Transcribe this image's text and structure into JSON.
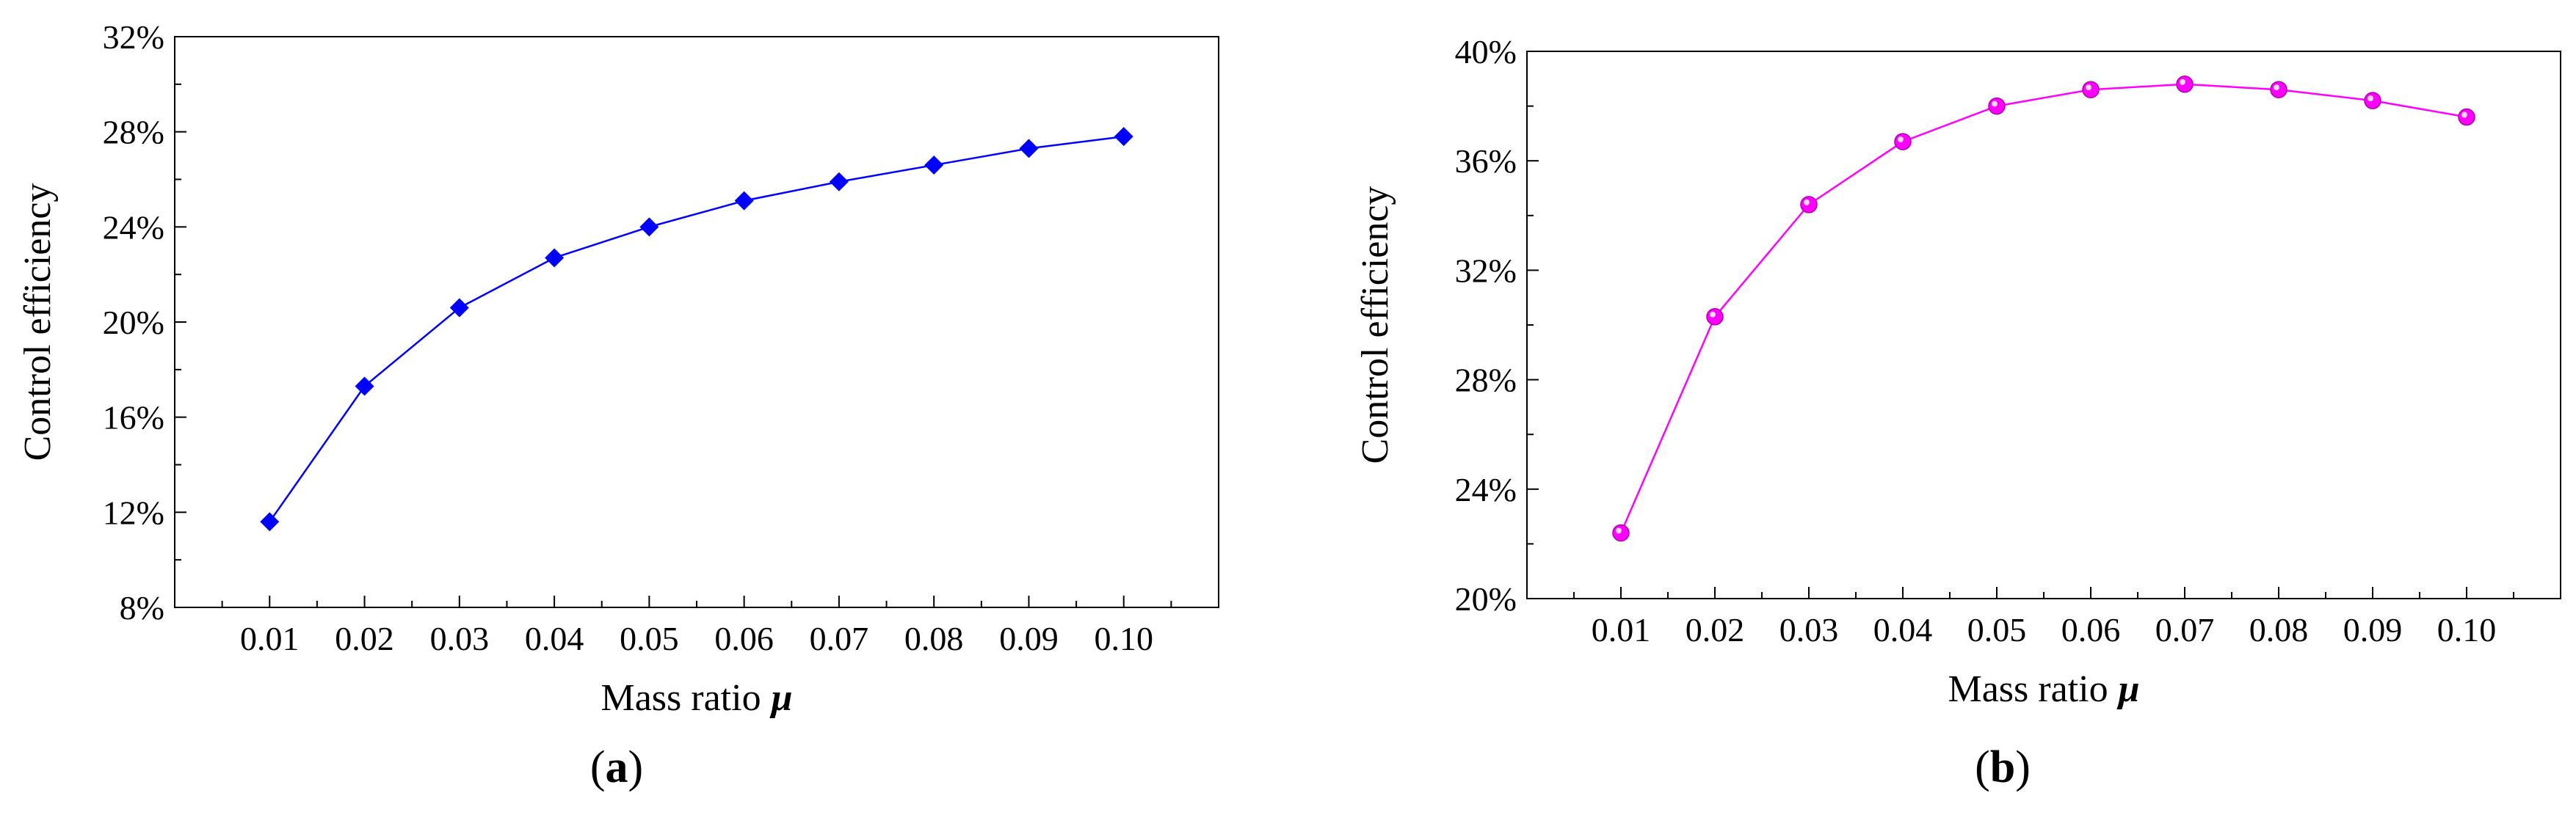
{
  "chart_data": [
    {
      "panel_label": "(a)",
      "panel_letter": "a",
      "type": "line",
      "xlabel": "Mass ratio",
      "xlabel_symbol": "μ",
      "ylabel": "Control efficiency",
      "categories": [
        "0.01",
        "0.02",
        "0.03",
        "0.04",
        "0.05",
        "0.06",
        "0.07",
        "0.08",
        "0.09",
        "0.10"
      ],
      "series": [
        {
          "values": [
            11.6,
            17.3,
            20.6,
            22.7,
            24.0,
            25.1,
            25.9,
            26.6,
            27.3,
            27.8
          ],
          "color": "#0000ff",
          "marker": "diamond"
        }
      ],
      "ylim": [
        8,
        32
      ],
      "yticks": [
        8,
        12,
        16,
        20,
        24,
        28,
        32
      ],
      "ytick_suffix": "%",
      "grid": false,
      "legend": "none"
    },
    {
      "panel_label": "(b)",
      "panel_letter": "b",
      "type": "line",
      "xlabel": "Mass ratio",
      "xlabel_symbol": "μ",
      "ylabel": "Control efficiency",
      "categories": [
        "0.01",
        "0.02",
        "0.03",
        "0.04",
        "0.05",
        "0.06",
        "0.07",
        "0.08",
        "0.09",
        "0.10"
      ],
      "series": [
        {
          "values": [
            22.4,
            30.3,
            34.4,
            36.7,
            38.0,
            38.6,
            38.8,
            38.6,
            38.2,
            37.6
          ],
          "color": "#ff00ff",
          "marker": "circle"
        }
      ],
      "ylim": [
        20,
        40
      ],
      "yticks": [
        20,
        24,
        28,
        32,
        36,
        40
      ],
      "ytick_suffix": "%",
      "grid": false,
      "legend": "none"
    }
  ]
}
